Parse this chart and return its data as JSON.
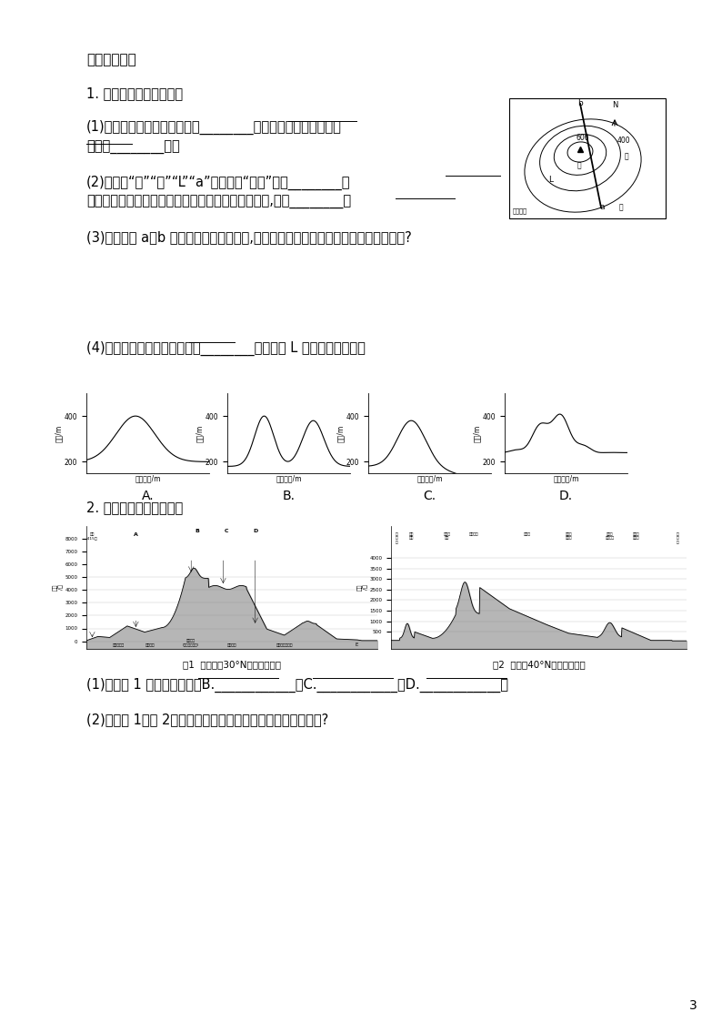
{
  "bg_color": "#ffffff",
  "text_color": "#000000",
  "page_width": 7.94,
  "page_height": 11.23,
  "section_title": "二、非选择题",
  "q1_title": "1. 阅读材料，回答问题。",
  "q1_1": "(1)右图的地形类型最有可能是________，图中乙、丙两地的相对",
  "q1_1b": "高度为________米。",
  "q1_2": "(2)图中的“甲”“乙”“L”“a”属于地图“语言”中的________。",
  "q1_2b": "如果将右图绘成分层设色地形图，则绿色越浅的地方,海拔________。",
  "q1_3": "(3)判断图中 a、b 两处哪一条可能是小溪,请说明判断的理由。该小溪的流向是怎样的?",
  "q1_4_prefix": "(4)下列四幅地形剪面图中，图________是沿图中 L 线所作的剪面图。",
  "q2_title": "2. 读下图，完成各小题。",
  "q2_1": "(1)说出图 1 中的地理事物：B.____________；C.____________；D.____________。",
  "q2_2": "(2)比较图 1、图 2，北美洲的地势变化特点与亚洲有什么差异?",
  "page_num": "3",
  "fig1_caption": "图1  亚洲大陆30°N的地形剪面图",
  "fig2_caption": "图2  北美洲40°N的地形剪面图"
}
